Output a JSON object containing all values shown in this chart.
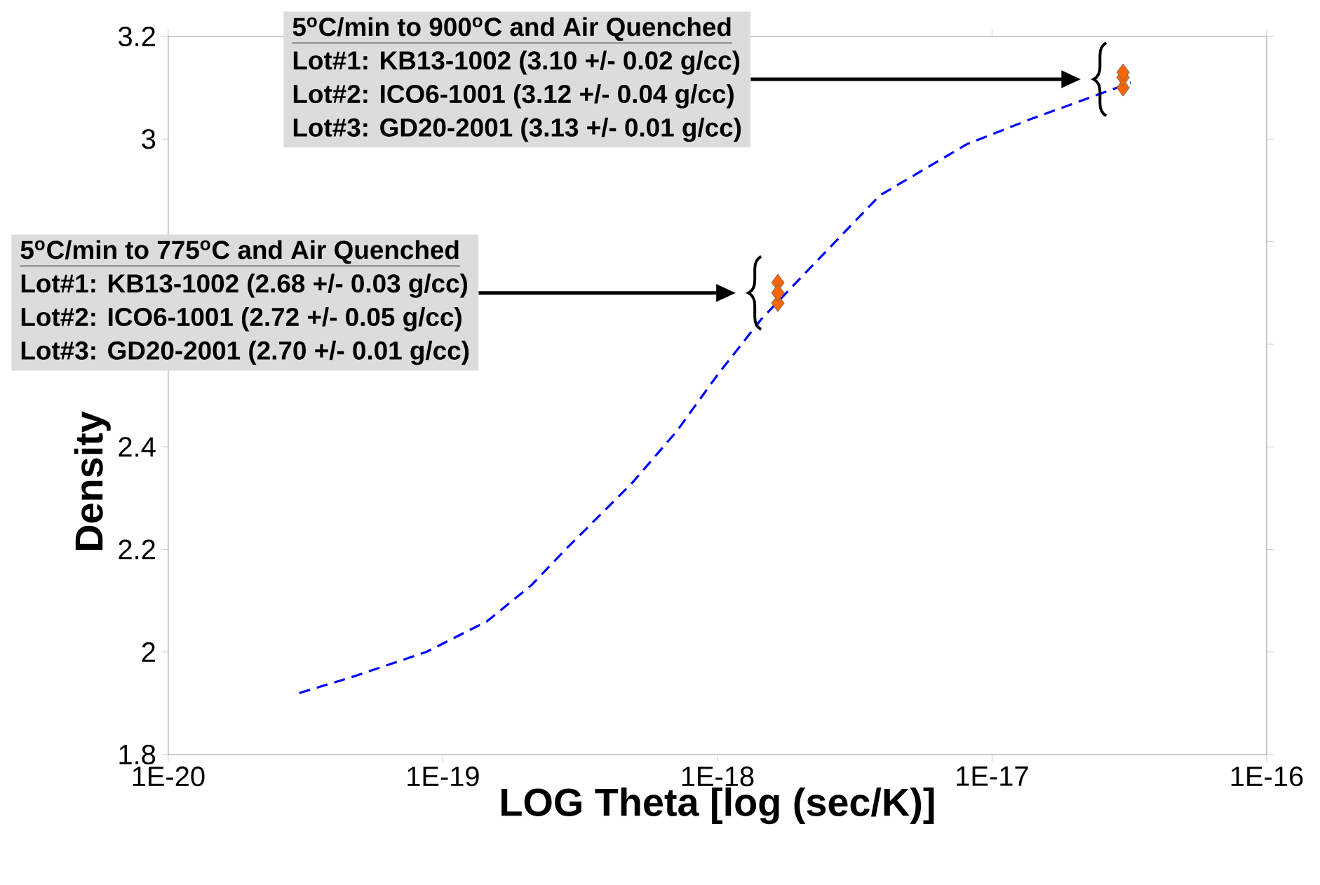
{
  "chart_data": {
    "type": "line",
    "xlabel": "LOG Theta [log (sec/K)]",
    "ylabel": "Density",
    "log": "x",
    "xlim": [
      1e-20,
      1e-16
    ],
    "xticks": [
      {
        "value": 1e-20,
        "label": "1E-20"
      },
      {
        "value": 1e-19,
        "label": "1E-19"
      },
      {
        "value": 1e-18,
        "label": "1E-18"
      },
      {
        "value": 1e-17,
        "label": "1E-17"
      },
      {
        "value": 1e-16,
        "label": "1E-16"
      }
    ],
    "ylim": [
      1.8,
      3.2
    ],
    "yticks": [
      1.8,
      2,
      2.2,
      2.4,
      {
        "value": 2.6,
        "label": null
      },
      {
        "value": 2.8,
        "label": null
      },
      3,
      3.2
    ],
    "series": [
      {
        "color": "#0000ff",
        "line_style": "dashed",
        "marker": "none",
        "x": [
          3e-20,
          4.6e-20,
          8.7e-20,
          1.45e-19,
          2.1e-19,
          2.8e-19,
          4.9e-19,
          7.1e-19,
          1e-18,
          1.45e-18,
          2.1e-18,
          3.9e-18,
          8.1e-18,
          1.4e-17,
          2e-17,
          3.2e-17
        ],
        "values": [
          1.92,
          1.95,
          2.0,
          2.06,
          2.13,
          2.2,
          2.33,
          2.43,
          2.54,
          2.65,
          2.74,
          2.89,
          2.99,
          3.04,
          3.07,
          3.11
        ]
      },
      {
        "type": "scatter",
        "color": "#ff6600",
        "marker": "diamond",
        "x": [
          3e-17,
          3e-17,
          3e-17,
          1.66e-18,
          1.66e-18,
          1.66e-18
        ],
        "values": [
          3.1,
          3.12,
          3.13,
          2.68,
          2.72,
          2.7
        ]
      }
    ],
    "annotations": [
      "5$^{o}$C/min to 900$^{o}$C and Air Quenched",
      "Lot#1:  KB13-1002  (3.10 +/- 0.02 g/cc)",
      "Lot#2:  ICO6-1001   (3.12 +/- 0.04 g/cc)",
      "Lot#3:  GD20-2001  (3.13 +/- 0.01 g/cc)",
      "5$^{o}$C/min to 775$^{o}$C and Air Quenched",
      "Lot#1:  KB13-1002  (2.68 +/- 0.03 g/cc)",
      "Lot#2:  ICO6-1001   (2.72 +/- 0.05 g/cc)",
      "Lot#3:  GD20-2001  (2.70 +/- 0.01 g/cc)"
    ]
  }
}
